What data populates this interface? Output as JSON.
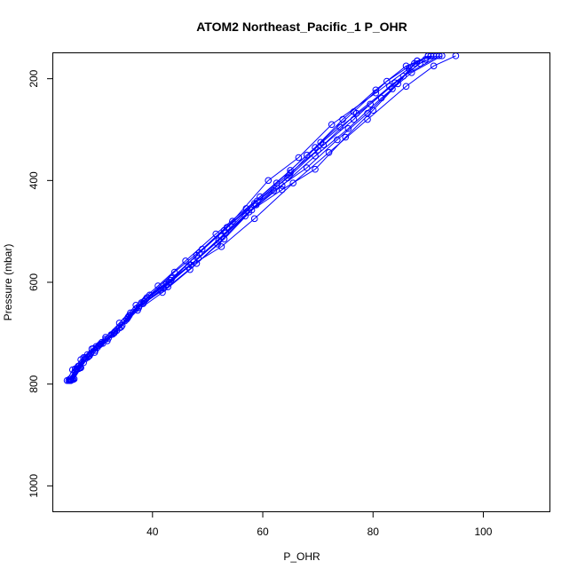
{
  "chart_data": {
    "type": "line",
    "title": "ATOM2 Northeast_Pacific_1 P_OHR",
    "xlabel": "P_OHR",
    "ylabel": "Pressure (mbar)",
    "xlim": [
      22,
      112
    ],
    "ylim": [
      1050,
      150
    ],
    "y_inverted": true,
    "xticks": [
      40,
      60,
      80,
      100
    ],
    "yticks": [
      200,
      400,
      600,
      800,
      1000
    ],
    "grid": false,
    "legend": "none",
    "series_color": "#0000ff",
    "marker": "open-circle",
    "series": [
      {
        "points": [
          [
            25.0,
            793
          ],
          [
            26.0,
            775
          ],
          [
            27.5,
            758
          ],
          [
            29.5,
            738
          ],
          [
            31.0,
            720
          ],
          [
            33.5,
            695
          ],
          [
            36.0,
            660
          ],
          [
            39.5,
            625
          ],
          [
            44.0,
            580
          ],
          [
            49.0,
            535
          ],
          [
            54.5,
            480
          ],
          [
            61.0,
            400
          ],
          [
            66.5,
            355
          ],
          [
            72.5,
            290
          ],
          [
            80.5,
            228
          ],
          [
            86.5,
            180
          ],
          [
            90.0,
            155
          ]
        ]
      },
      {
        "points": [
          [
            24.5,
            793
          ],
          [
            25.5,
            772
          ],
          [
            27.0,
            752
          ],
          [
            29.0,
            731
          ],
          [
            31.5,
            708
          ],
          [
            34.0,
            680
          ],
          [
            37.0,
            645
          ],
          [
            41.0,
            607
          ],
          [
            46.0,
            558
          ],
          [
            51.5,
            505
          ],
          [
            57.0,
            455
          ],
          [
            62.5,
            405
          ],
          [
            68.0,
            350
          ],
          [
            74.0,
            295
          ],
          [
            79.5,
            250
          ],
          [
            85.5,
            195
          ],
          [
            92.0,
            155
          ]
        ]
      },
      {
        "points": [
          [
            25.2,
            793
          ],
          [
            26.3,
            770
          ],
          [
            27.8,
            748
          ],
          [
            29.8,
            726
          ],
          [
            32.0,
            710
          ],
          [
            34.5,
            685
          ],
          [
            37.5,
            650
          ],
          [
            42.0,
            612
          ],
          [
            47.5,
            560
          ],
          [
            52.5,
            510
          ],
          [
            58.5,
            445
          ],
          [
            64.5,
            395
          ],
          [
            70.0,
            340
          ],
          [
            76.5,
            280
          ],
          [
            83.0,
            215
          ],
          [
            88.5,
            170
          ],
          [
            91.5,
            155
          ]
        ]
      },
      {
        "points": [
          [
            25.8,
            790
          ],
          [
            27.0,
            768
          ],
          [
            28.5,
            745
          ],
          [
            30.5,
            722
          ],
          [
            33.0,
            700
          ],
          [
            35.5,
            670
          ],
          [
            38.5,
            637
          ],
          [
            43.0,
            600
          ],
          [
            48.0,
            547
          ],
          [
            53.0,
            498
          ],
          [
            59.0,
            440
          ],
          [
            65.0,
            385
          ],
          [
            71.0,
            330
          ],
          [
            77.0,
            268
          ],
          [
            84.0,
            208
          ],
          [
            89.5,
            162
          ]
        ]
      },
      {
        "points": [
          [
            25.0,
            790
          ],
          [
            26.5,
            765
          ],
          [
            28.2,
            742
          ],
          [
            30.0,
            728
          ],
          [
            32.5,
            703
          ],
          [
            35.0,
            676
          ],
          [
            38.0,
            640
          ],
          [
            42.5,
            604
          ],
          [
            47.0,
            566
          ],
          [
            52.0,
            518
          ],
          [
            57.5,
            462
          ],
          [
            63.5,
            410
          ],
          [
            69.5,
            352
          ],
          [
            75.5,
            298
          ],
          [
            81.5,
            238
          ],
          [
            87.0,
            188
          ],
          [
            92.5,
            155
          ]
        ]
      },
      {
        "points": [
          [
            24.8,
            793
          ],
          [
            26.0,
            770
          ],
          [
            27.5,
            748
          ],
          [
            29.3,
            730
          ],
          [
            31.5,
            712
          ],
          [
            34.0,
            690
          ],
          [
            37.0,
            652
          ],
          [
            41.5,
            615
          ],
          [
            46.5,
            570
          ],
          [
            52.5,
            530
          ],
          [
            58.5,
            475
          ],
          [
            65.5,
            405
          ],
          [
            72.0,
            345
          ],
          [
            79.0,
            280
          ],
          [
            86.0,
            215
          ],
          [
            91.0,
            175
          ],
          [
            95.0,
            155
          ]
        ]
      },
      {
        "points": [
          [
            25.5,
            790
          ],
          [
            26.8,
            768
          ],
          [
            28.8,
            740
          ],
          [
            30.8,
            718
          ],
          [
            33.2,
            697
          ],
          [
            35.8,
            665
          ],
          [
            39.0,
            630
          ],
          [
            43.5,
            592
          ],
          [
            48.5,
            542
          ],
          [
            53.5,
            492
          ],
          [
            59.5,
            432
          ],
          [
            65.0,
            380
          ],
          [
            69.5,
            335
          ],
          [
            74.5,
            280
          ],
          [
            80.5,
            222
          ],
          [
            86.0,
            175
          ],
          [
            90.5,
            155
          ]
        ]
      },
      {
        "points": [
          [
            25.3,
            792
          ],
          [
            26.6,
            770
          ],
          [
            28.3,
            747
          ],
          [
            30.3,
            724
          ],
          [
            32.8,
            702
          ],
          [
            35.3,
            673
          ],
          [
            38.3,
            642
          ],
          [
            42.8,
            609
          ],
          [
            48.0,
            563
          ],
          [
            53.0,
            515
          ],
          [
            58.0,
            458
          ],
          [
            63.5,
            418
          ],
          [
            69.5,
            378
          ],
          [
            75.0,
            315
          ],
          [
            80.0,
            262
          ],
          [
            84.5,
            210
          ],
          [
            88.0,
            165
          ],
          [
            90.5,
            155
          ]
        ]
      },
      {
        "points": [
          [
            25.1,
            793
          ],
          [
            26.2,
            772
          ],
          [
            27.9,
            750
          ],
          [
            29.6,
            734
          ],
          [
            31.8,
            715
          ],
          [
            34.3,
            688
          ],
          [
            37.3,
            655
          ],
          [
            41.8,
            620
          ],
          [
            46.8,
            575
          ],
          [
            51.8,
            525
          ],
          [
            56.8,
            470
          ],
          [
            62.0,
            420
          ],
          [
            68.0,
            375
          ],
          [
            73.5,
            320
          ],
          [
            79.0,
            268
          ],
          [
            83.5,
            220
          ],
          [
            87.5,
            170
          ],
          [
            90.0,
            155
          ]
        ]
      },
      {
        "points": [
          [
            25.6,
            791
          ],
          [
            26.9,
            767
          ],
          [
            28.6,
            744
          ],
          [
            30.6,
            721
          ],
          [
            33.1,
            699
          ],
          [
            35.6,
            668
          ],
          [
            38.8,
            633
          ],
          [
            43.3,
            596
          ],
          [
            48.3,
            553
          ],
          [
            53.3,
            503
          ],
          [
            58.8,
            448
          ],
          [
            64.8,
            390
          ],
          [
            70.5,
            325
          ],
          [
            76.5,
            265
          ],
          [
            82.5,
            205
          ],
          [
            88.0,
            165
          ],
          [
            91.0,
            155
          ]
        ]
      }
    ]
  }
}
